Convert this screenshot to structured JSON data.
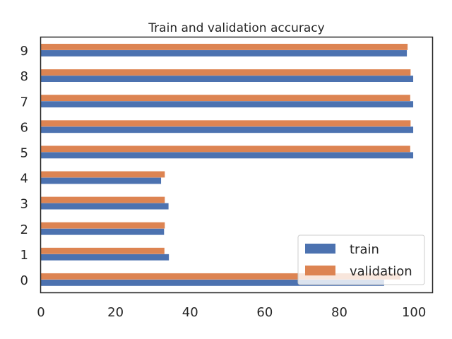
{
  "chart_data": {
    "type": "bar",
    "orientation": "horizontal",
    "title": "Train and validation accuracy",
    "xlabel": "",
    "ylabel": "",
    "categories": [
      "0",
      "1",
      "2",
      "3",
      "4",
      "5",
      "6",
      "7",
      "8",
      "9"
    ],
    "x_ticks": [
      0,
      20,
      40,
      60,
      80,
      100
    ],
    "xlim": [
      0,
      104.9
    ],
    "grid": false,
    "legend_position": "lower-right",
    "series": [
      {
        "name": "train",
        "color": "#4c72b0",
        "values": [
          92.0,
          34.3,
          33.0,
          34.2,
          32.2,
          99.8,
          99.8,
          99.8,
          99.8,
          98.1
        ]
      },
      {
        "name": "validation",
        "color": "#dd8452",
        "values": [
          96.4,
          33.1,
          33.2,
          33.2,
          33.2,
          99.0,
          99.1,
          99.0,
          99.1,
          98.3
        ]
      }
    ]
  }
}
